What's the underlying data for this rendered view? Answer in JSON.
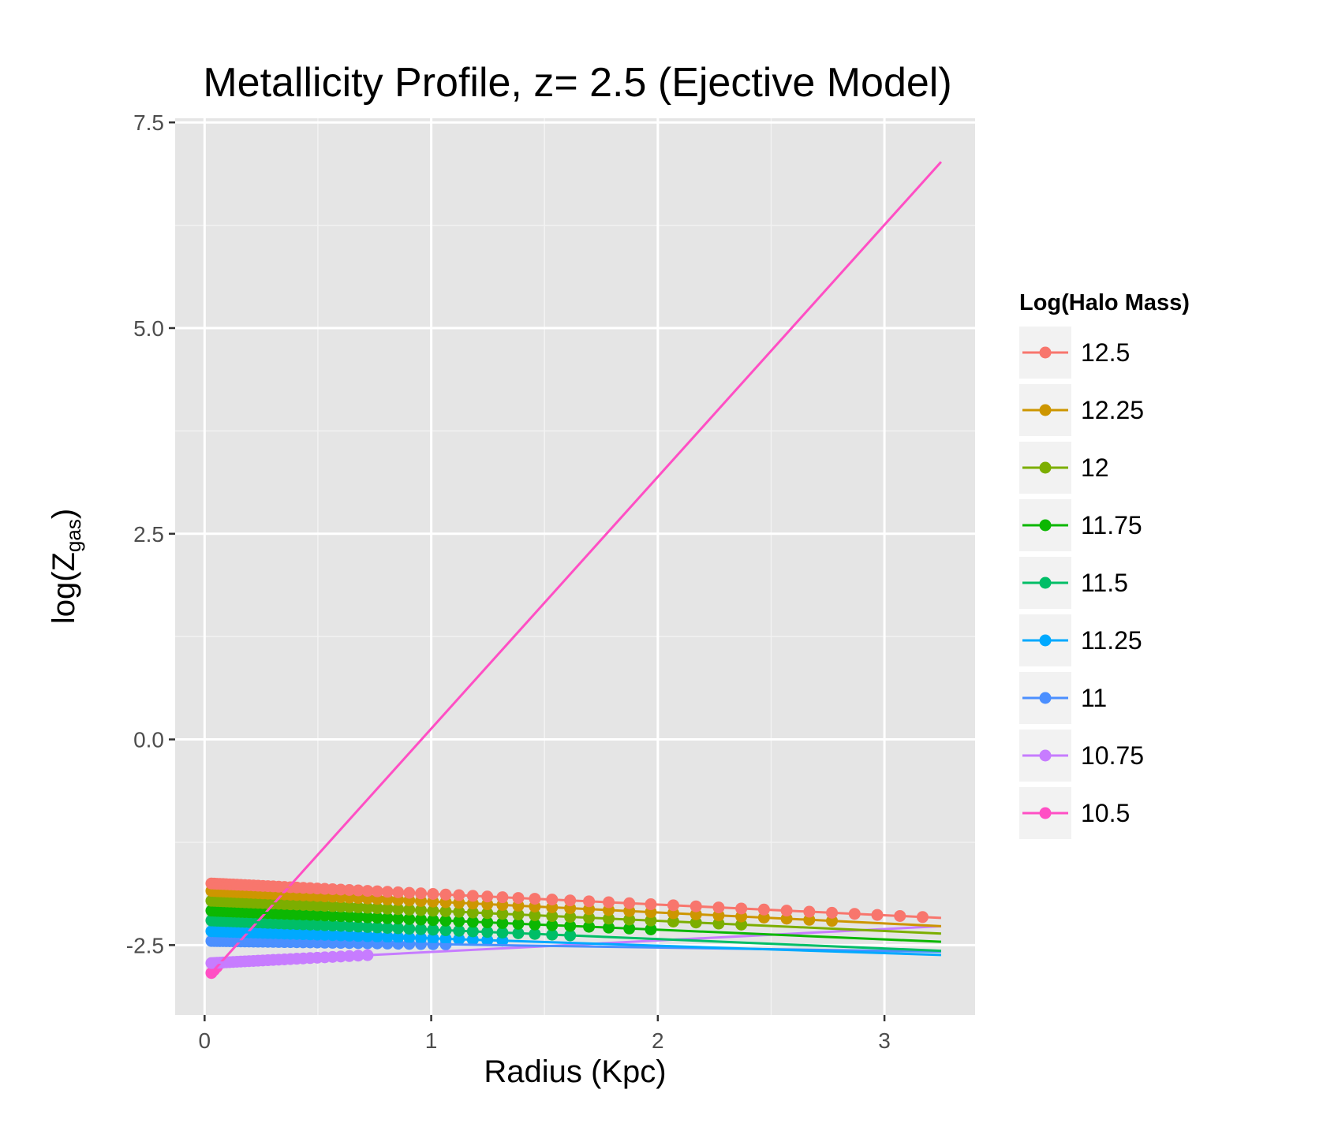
{
  "chart_data": {
    "type": "line",
    "title": "Metallicity Profile, z= 2.5 (Ejective Model)",
    "xlabel": "Radius (Kpc)",
    "ylabel_main": "log(Z",
    "ylabel_sub": "gas",
    "ylabel_close": ")",
    "xlim": [
      -0.13,
      3.4
    ],
    "ylim": [
      -3.35,
      7.55
    ],
    "x_ticks": [
      0,
      1,
      2,
      3
    ],
    "x_tick_labels": [
      "0",
      "1",
      "2",
      "3"
    ],
    "y_ticks": [
      -2.5,
      0,
      2.5,
      5,
      7.5
    ],
    "y_tick_labels": [
      "-2.5",
      "0.0",
      "2.5",
      "5.0",
      "7.5"
    ],
    "grid": true,
    "legend_title": "Log(Halo Mass)",
    "legend_position": "right",
    "series": [
      {
        "name": "12.5",
        "color": "#F8766D",
        "x_start": 0.02,
        "x_end": 3.25,
        "y_start": -1.75,
        "y_end": -2.17,
        "points_x_end": 3.25
      },
      {
        "name": "12.25",
        "color": "#CD9600",
        "x_start": 0.02,
        "x_end": 3.25,
        "y_start": -1.84,
        "y_end": -2.27,
        "points_x_end": 2.85
      },
      {
        "name": "12",
        "color": "#7CAE00",
        "x_start": 0.02,
        "x_end": 3.25,
        "y_start": -1.96,
        "y_end": -2.36,
        "points_x_end": 2.45
      },
      {
        "name": "11.75",
        "color": "#0CB702",
        "x_start": 0.02,
        "x_end": 3.25,
        "y_start": -2.08,
        "y_end": -2.46,
        "points_x_end": 2.05
      },
      {
        "name": "11.5",
        "color": "#00BE67",
        "x_start": 0.02,
        "x_end": 3.25,
        "y_start": -2.2,
        "y_end": -2.57,
        "points_x_end": 1.65
      },
      {
        "name": "11.25",
        "color": "#00A9FF",
        "x_start": 0.02,
        "x_end": 3.25,
        "y_start": -2.33,
        "y_end": -2.62,
        "points_x_end": 1.35
      },
      {
        "name": "11",
        "color": "#4B8FFF",
        "x_start": 0.02,
        "x_end": 3.25,
        "y_start": -2.45,
        "y_end": -2.58,
        "points_x_end": 1.12
      },
      {
        "name": "10.75",
        "color": "#C77CFF",
        "x_start": 0.02,
        "x_end": 3.25,
        "y_start": -2.72,
        "y_end": -2.27,
        "points_x_end": 0.75
      },
      {
        "name": "10.5",
        "color": "#FF4FC4",
        "x_start": 0.02,
        "x_end": 3.25,
        "y_start": -2.87,
        "y_end": 7.02,
        "points_x_end": 0.08
      }
    ]
  }
}
